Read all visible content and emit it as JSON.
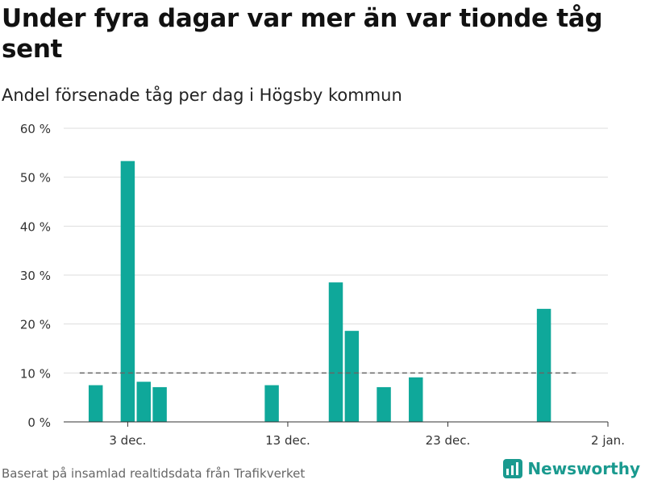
{
  "title": "Under fyra dagar var mer än var tionde tåg sent",
  "subtitle": "Andel försenade tåg per dag i Högsby kommun",
  "footer": "Baserat på insamlad realtidsdata från Trafikverket",
  "brand": "Newsworthy",
  "colors": {
    "bar": "#0fa89a",
    "grid": "#dddddd",
    "reference": "#666666",
    "brand": "#1a9a8f"
  },
  "chart_data": {
    "type": "bar",
    "x_type": "date",
    "x": [
      "2023-12-01",
      "2023-12-03",
      "2023-12-04",
      "2023-12-05",
      "2023-12-12",
      "2023-12-16",
      "2023-12-17",
      "2023-12-19",
      "2023-12-21",
      "2023-12-29"
    ],
    "values": [
      7.5,
      53.3,
      8.2,
      7.1,
      7.5,
      28.5,
      18.6,
      7.1,
      9.1,
      23.1
    ],
    "xlim": [
      "2023-11-29",
      "2024-01-02"
    ],
    "ylim": [
      0,
      60
    ],
    "y_ticks": [
      0,
      10,
      20,
      30,
      40,
      50,
      60
    ],
    "y_tick_labels": [
      "0 %",
      "10 %",
      "20 %",
      "30 %",
      "40 %",
      "50 %",
      "60 %"
    ],
    "x_ticks": [
      "2023-12-03",
      "2023-12-13",
      "2023-12-23",
      "2024-01-02"
    ],
    "x_tick_labels": [
      "3 dec.",
      "13 dec.",
      "23 dec.",
      "2 jan."
    ],
    "reference_line": {
      "value": 10,
      "style": "dashed",
      "from": "2023-11-30",
      "to": "2023-12-31"
    },
    "grid": true,
    "legend": false
  }
}
